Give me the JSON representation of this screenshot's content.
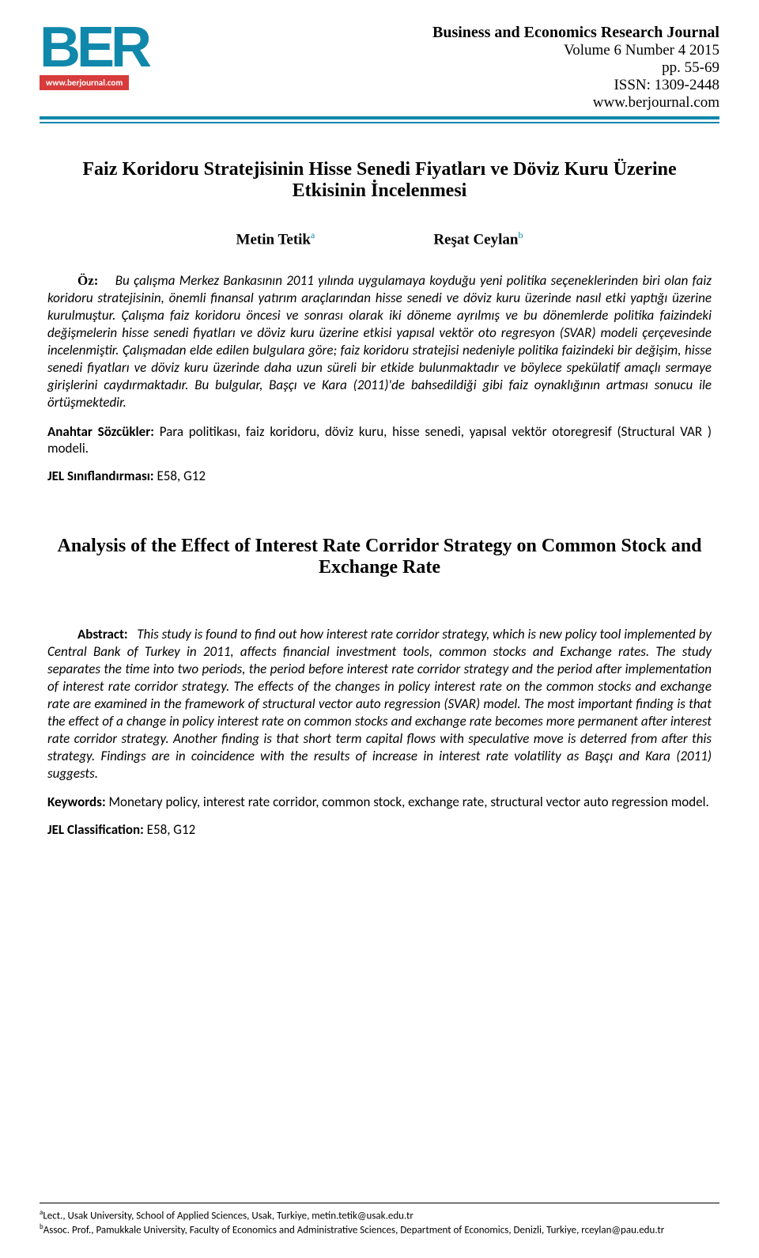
{
  "logo": {
    "text": "BER",
    "url_badge": "www.berjournal.com"
  },
  "journal": {
    "name": "Business and Economics Research Journal",
    "volume_line": "Volume 6 Number 4 2015",
    "pages": "pp. 55-69",
    "issn": "ISSN: 1309-2448",
    "website": "www.berjournal.com"
  },
  "title_tr": "Faiz Koridoru Stratejisinin Hisse Senedi Fiyatları ve Döviz Kuru Üzerine Etkisinin İncelenmesi",
  "authors": {
    "a1_name": "Metin Tetik",
    "a1_sup": "a",
    "a2_name": "Reşat Ceylan",
    "a2_sup": "b"
  },
  "oz": {
    "label": "Öz:",
    "body": "Bu çalışma Merkez Bankasının 2011 yılında uygulamaya koyduğu yeni politika seçeneklerinden biri olan faiz koridoru stratejisinin, önemli finansal yatırım araçlarından hisse senedi ve döviz kuru üzerinde nasıl etki yaptığı üzerine kurulmuştur. Çalışma faiz koridoru öncesi ve sonrası olarak iki döneme ayrılmış ve bu dönemlerde politika faizindeki değişmelerin hisse senedi fiyatları ve döviz kuru üzerine etkisi yapısal vektör oto regresyon (SVAR) modeli çerçevesinde incelenmiştir. Çalışmadan elde edilen bulgulara göre; faiz koridoru stratejisi nedeniyle politika faizindeki bir değişim, hisse senedi fiyatları ve döviz kuru üzerinde daha uzun süreli bir etkide bulunmaktadır ve böylece spekülatif amaçlı sermaye girişlerini caydırmaktadır. Bu bulgular, Başçı ve Kara (2011)'de bahsedildiği gibi faiz oynaklığının artması sonucu ile örtüşmektedir."
  },
  "anahtar": {
    "label": "Anahtar Sözcükler:",
    "body": " Para politikası, faiz koridoru, döviz kuru, hisse senedi, yapısal vektör otoregresif (Structural VAR ) modeli."
  },
  "jel_tr": {
    "label": "JEL Sınıflandırması:",
    "body": " E58, G12"
  },
  "title_en": "Analysis of the Effect of Interest Rate Corridor Strategy on Common Stock and Exchange Rate",
  "abstract_en": {
    "label": "Abstract:",
    "body": "This study is found to find out how interest rate corridor strategy, which is new policy tool implemented by Central Bank of Turkey in 2011, affects financial investment tools, common stocks and Exchange rates. The study separates the time into two periods, the period before interest rate corridor strategy and the period after implementation of interest rate corridor strategy. The effects of the changes in policy interest rate on the common stocks and exchange rate are examined in the framework of structural vector auto regression (SVAR) model. The most important finding is that the effect of a change in policy interest rate on common stocks and exchange rate becomes more permanent after interest rate corridor strategy. Another finding is that short term capital flows with speculative move is deterred from after this strategy. Findings are in coincidence with the results of increase in interest rate volatility as Başçı and Kara (2011) suggests."
  },
  "keywords_en": {
    "label": "Keywords:",
    "body": " Monetary policy, interest rate corridor, common stock, exchange rate, structural vector auto regression model."
  },
  "jel_en": {
    "label": "JEL Classification:",
    "body": " E58, G12"
  },
  "footnotes": {
    "a_sup": "a",
    "a_text": "Lect., Usak University, School of Applied Sciences, Usak, Turkiye, metin.tetik@usak.edu.tr",
    "b_sup": "b",
    "b_text": "Assoc. Prof., Pamukkale University, Faculty of Economics and Administrative Sciences, Department of Economics, Denizli, Turkiye, rceylan@pau.edu.tr"
  },
  "colors": {
    "brand_teal": "#1088ab",
    "badge_red": "#d83b3b"
  }
}
